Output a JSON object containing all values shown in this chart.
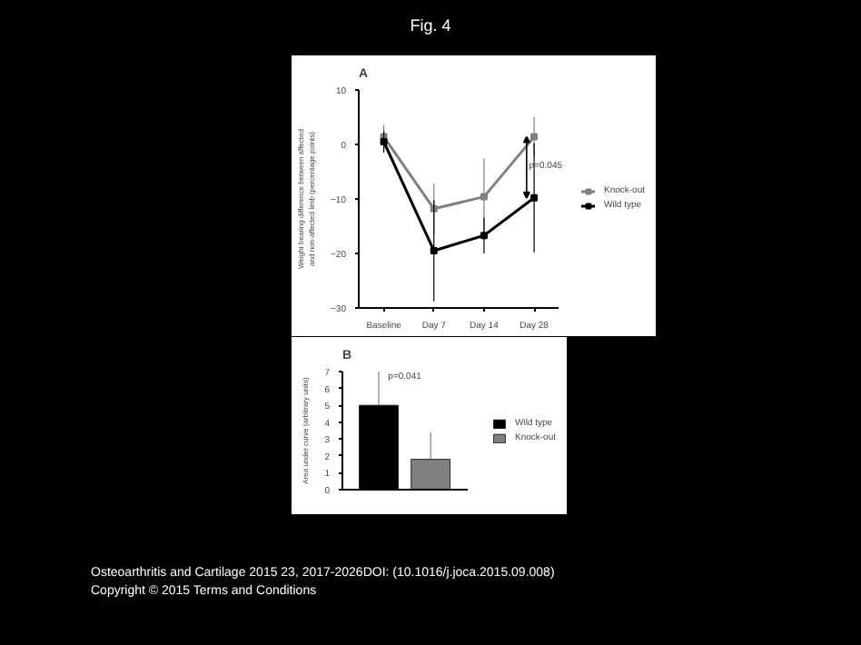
{
  "chart_data": [
    {
      "type": "line",
      "title": "A",
      "ylabel": "Weight bearing difference between affected and non-affected limb (percentage points)",
      "categories": [
        "Baseline",
        "Day 7",
        "Day 14",
        "Day 28"
      ],
      "series": [
        {
          "name": "Knock-out",
          "color": "#808080",
          "values": [
            1.4,
            -11.8,
            -9.6,
            1.4
          ],
          "errors": [
            2.2,
            4.6,
            7.0,
            3.6
          ]
        },
        {
          "name": "Wild type",
          "color": "#000000",
          "values": [
            0.5,
            -19.5,
            -16.7,
            -9.8
          ],
          "errors": [
            2.0,
            9.3,
            3.3,
            10.0
          ]
        }
      ],
      "ylim": [
        -30,
        10
      ],
      "yticks": [
        -30,
        -20,
        -10,
        0,
        10
      ],
      "marker": "square",
      "line_style": "solid",
      "grid": false,
      "legend": "right",
      "annotations": [
        "Fig. 4",
        {
          "text": "p=0.045",
          "x": "Day 28",
          "y": -4
        }
      ]
    },
    {
      "type": "bar",
      "title": "B",
      "ylabel": "Area under curve (arbitrary units)",
      "categories": [
        null,
        null
      ],
      "series": [
        {
          "name": "Wild type",
          "color": "#000000",
          "values": [
            5.0,
            null
          ],
          "errors": [
            2.0,
            null
          ]
        },
        {
          "name": "Knock-out",
          "color": "#808080",
          "values": [
            null,
            1.8
          ],
          "errors": [
            null,
            1.6
          ]
        }
      ],
      "ylim": [
        0,
        7
      ],
      "yticks": [
        0,
        1,
        2,
        3,
        4,
        5,
        6,
        7
      ],
      "grid": false,
      "legend": "right",
      "annotations": [
        "p=0.041",
        "Osteoarthritis and Cartilage 2015 23, 2017-2026DOI: (10.1016/j.joca.2015.09.008)",
        "Copyright © 2015 Terms and Conditions"
      ]
    }
  ]
}
